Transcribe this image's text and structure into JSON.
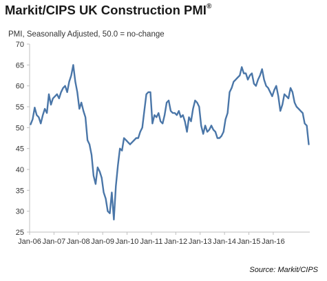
{
  "header": {
    "title": "Markit/CIPS UK Construction PMI",
    "title_mark": "®",
    "subtitle": "PMI, Seasonally Adjusted, 50.0 = no-change"
  },
  "footer": {
    "source": "Source: Markit/CIPS"
  },
  "colors": {
    "line": "#4a76a8",
    "axis": "#bfbfbf"
  },
  "chart_data": {
    "type": "line",
    "title": "Markit/CIPS UK Construction PMI®",
    "subtitle": "PMI, Seasonally Adjusted, 50.0 = no-change",
    "xlabel": "",
    "ylabel": "",
    "ylim": [
      25,
      70
    ],
    "y_ticks": [
      25,
      30,
      35,
      40,
      45,
      50,
      55,
      60,
      65,
      70
    ],
    "x_ticks": [
      "Jan-06",
      "Jan-07",
      "Jan-08",
      "Jan-09",
      "Jan-10",
      "Jan-11",
      "Jan-12",
      "Jan-13",
      "Jan-14",
      "Jan-15",
      "Jan-16"
    ],
    "grid": false,
    "legend": "none",
    "x_start": "2006-01",
    "x_end": "2016-03",
    "frequency": "monthly",
    "series": [
      {
        "values": [
          50.8,
          52.0,
          54.8,
          53.0,
          52.5,
          51.0,
          53.0,
          54.5,
          53.5,
          58.0,
          55.5,
          57.0,
          57.5,
          58.0,
          57.0,
          58.5,
          59.5,
          60.0,
          58.5,
          61.0,
          62.5,
          65.0,
          61.0,
          58.5,
          54.5,
          56.0,
          54.0,
          52.5,
          47.0,
          46.0,
          43.5,
          38.5,
          36.5,
          40.5,
          39.5,
          38.0,
          34.5,
          33.0,
          30.0,
          29.5,
          34.5,
          28.0,
          36.0,
          41.0,
          45.0,
          44.5,
          47.5,
          47.0,
          46.5,
          46.0,
          46.5,
          47.0,
          47.5,
          47.5,
          49.0,
          50.0,
          54.0,
          58.0,
          58.5,
          58.5,
          51.0,
          53.0,
          52.5,
          53.5,
          51.5,
          51.0,
          53.0,
          56.0,
          56.5,
          54.0,
          53.5,
          53.5,
          53.0,
          54.0,
          52.5,
          53.0,
          51.5,
          49.0,
          52.5,
          51.5,
          54.5,
          56.5,
          56.0,
          55.0,
          50.5,
          48.5,
          50.5,
          49.0,
          49.5,
          50.5,
          49.5,
          49.0,
          47.5,
          47.5,
          48.0,
          49.0,
          52.0,
          53.5,
          58.5,
          59.5,
          61.0,
          61.5,
          62.0,
          62.5,
          64.5,
          63.0,
          63.0,
          61.5,
          62.5,
          63.0,
          60.5,
          60.0,
          61.5,
          62.5,
          64.0,
          61.5,
          60.0,
          59.5,
          58.5,
          57.5,
          59.0,
          60.0,
          57.5,
          54.0,
          55.5,
          58.0,
          57.5,
          57.0,
          59.5,
          58.5,
          56.0,
          55.0,
          54.5,
          54.0,
          53.5,
          51.0,
          50.5,
          46.0
        ]
      }
    ]
  }
}
